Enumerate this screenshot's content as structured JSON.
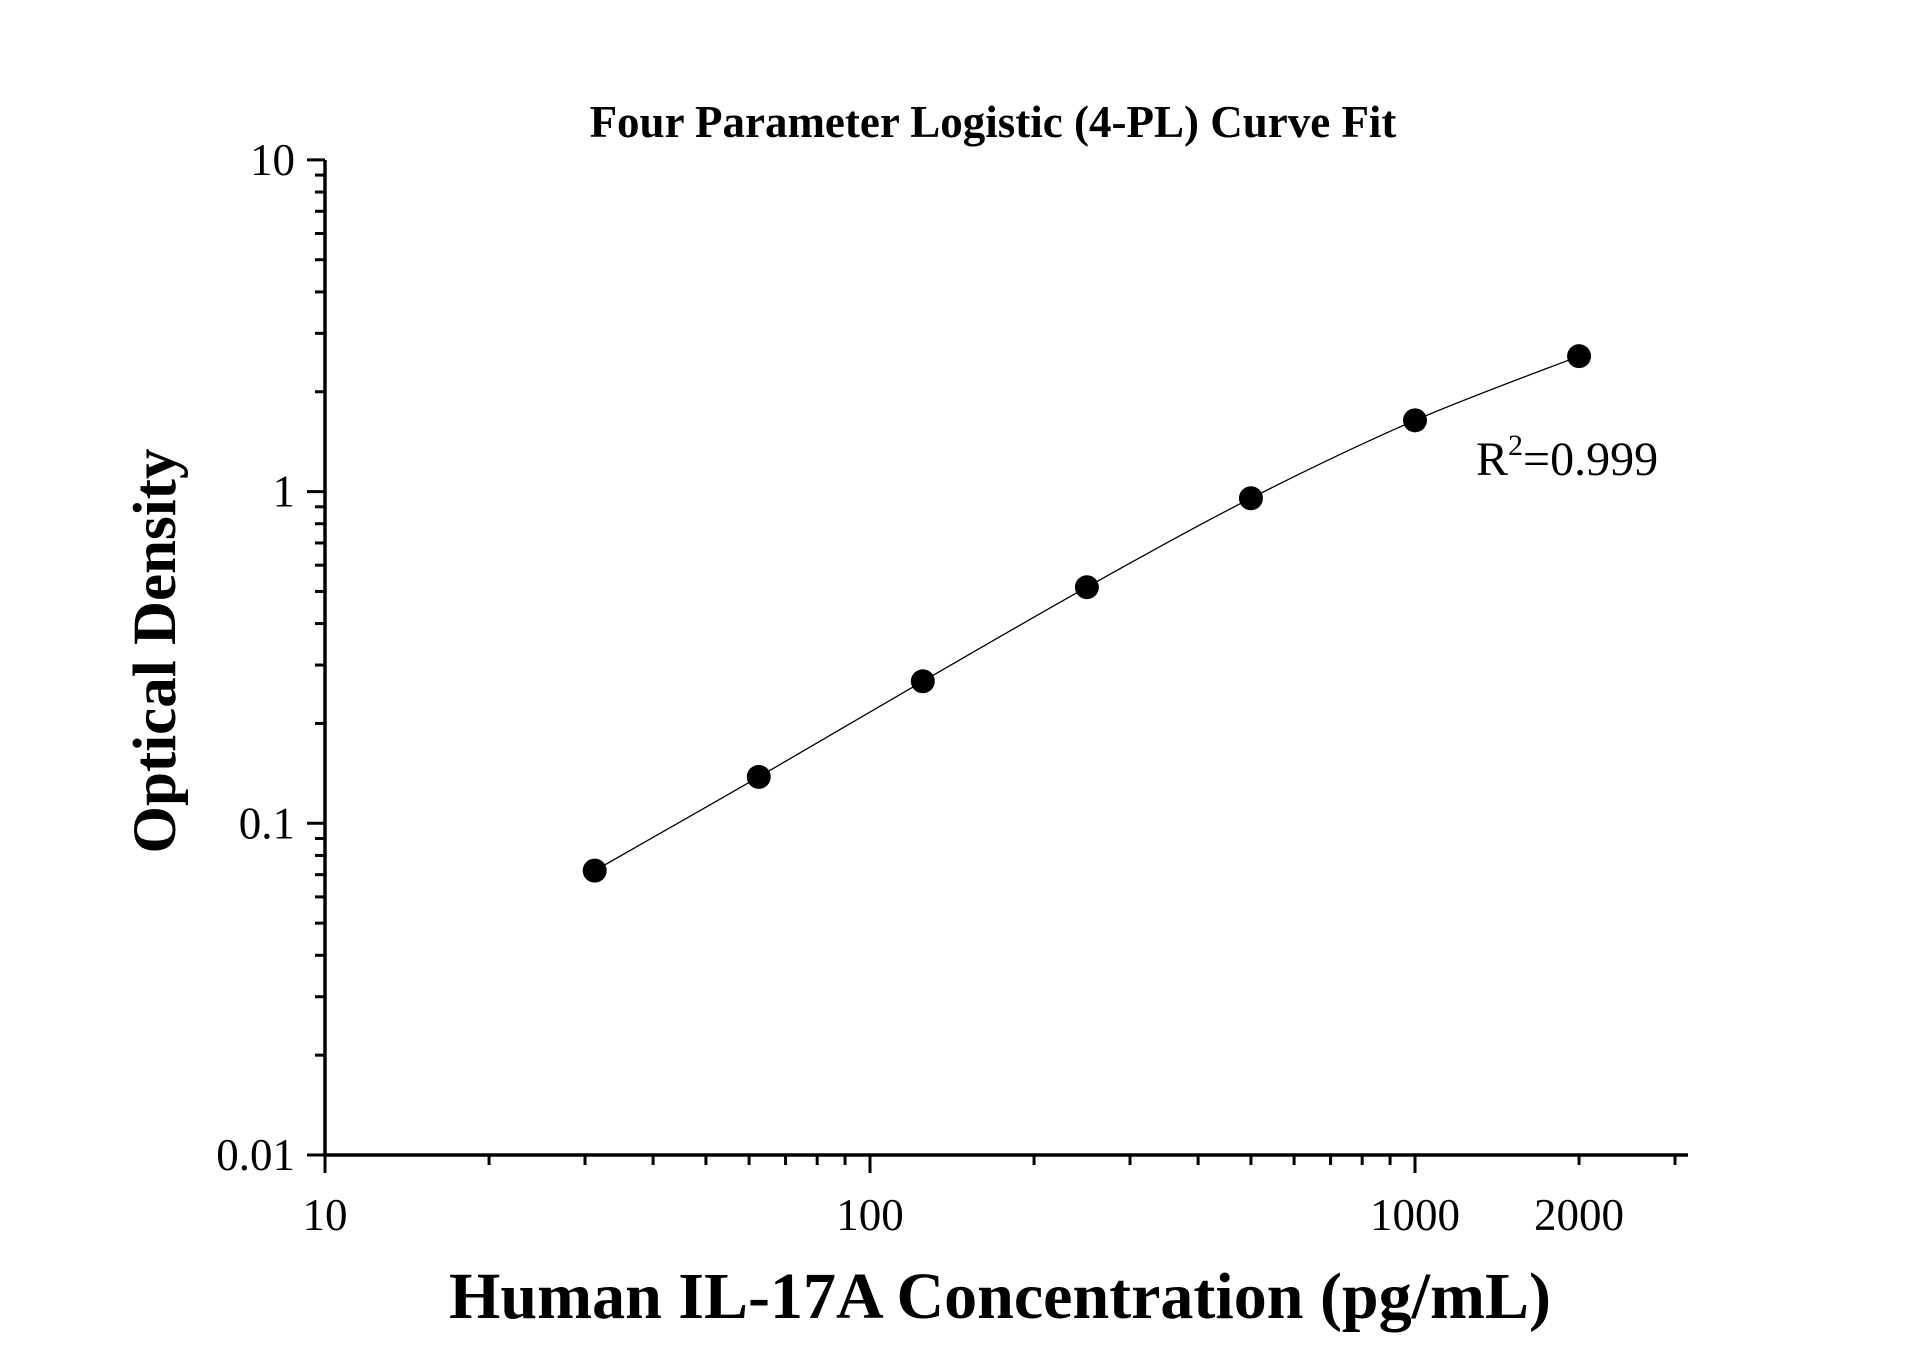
{
  "chart_data": {
    "type": "scatter",
    "title": "Four Parameter Logistic (4-PL) Curve Fit",
    "xlabel": "Human IL-17A Concentration (pg/mL)",
    "ylabel": "Optical Density",
    "x_scale": "log",
    "y_scale": "log",
    "xlim": [
      10,
      3000
    ],
    "ylim": [
      0.01,
      10
    ],
    "x_ticks": [
      10,
      100,
      1000,
      2000
    ],
    "x_tick_labels": [
      "10",
      "100",
      "1000",
      "2000"
    ],
    "y_ticks": [
      0.01,
      0.1,
      1,
      10
    ],
    "y_tick_labels": [
      "0.01",
      "0.1",
      "1",
      "10"
    ],
    "grid": false,
    "series": [
      {
        "x": [
          31.25,
          62.5,
          125,
          250,
          500,
          1000,
          2000
        ],
        "y": [
          0.072,
          0.138,
          0.268,
          0.515,
          0.955,
          1.64,
          2.56
        ],
        "marker": "circle",
        "color": "#000000"
      }
    ],
    "fit": {
      "model": "4-PL",
      "color": "#000000"
    },
    "annotation": {
      "base": "R",
      "sup": "2",
      "rest": "=0.999"
    }
  }
}
